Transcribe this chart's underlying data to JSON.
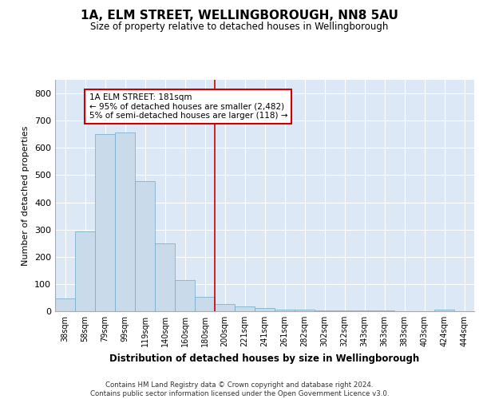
{
  "title": "1A, ELM STREET, WELLINGBOROUGH, NN8 5AU",
  "subtitle": "Size of property relative to detached houses in Wellingborough",
  "xlabel": "Distribution of detached houses by size in Wellingborough",
  "ylabel": "Number of detached properties",
  "categories": [
    "38sqm",
    "58sqm",
    "79sqm",
    "99sqm",
    "119sqm",
    "140sqm",
    "160sqm",
    "180sqm",
    "200sqm",
    "221sqm",
    "241sqm",
    "261sqm",
    "282sqm",
    "302sqm",
    "322sqm",
    "343sqm",
    "363sqm",
    "383sqm",
    "403sqm",
    "424sqm",
    "444sqm"
  ],
  "values": [
    47,
    293,
    651,
    657,
    478,
    248,
    115,
    52,
    27,
    17,
    13,
    7,
    5,
    4,
    3,
    2,
    2,
    0,
    0,
    7,
    0
  ],
  "bar_color": "#c9daea",
  "bar_edge_color": "#6fa8c8",
  "background_color": "#dce8f5",
  "grid_color": "#ffffff",
  "vline_x_index": 7,
  "vline_color": "#cc0000",
  "annotation_text": "1A ELM STREET: 181sqm\n← 95% of detached houses are smaller (2,482)\n5% of semi-detached houses are larger (118) →",
  "annotation_box_color": "#ffffff",
  "annotation_box_edge_color": "#cc0000",
  "ylim": [
    0,
    850
  ],
  "yticks": [
    0,
    100,
    200,
    300,
    400,
    500,
    600,
    700,
    800
  ],
  "footer_line1": "Contains HM Land Registry data © Crown copyright and database right 2024.",
  "footer_line2": "Contains public sector information licensed under the Open Government Licence v3.0."
}
